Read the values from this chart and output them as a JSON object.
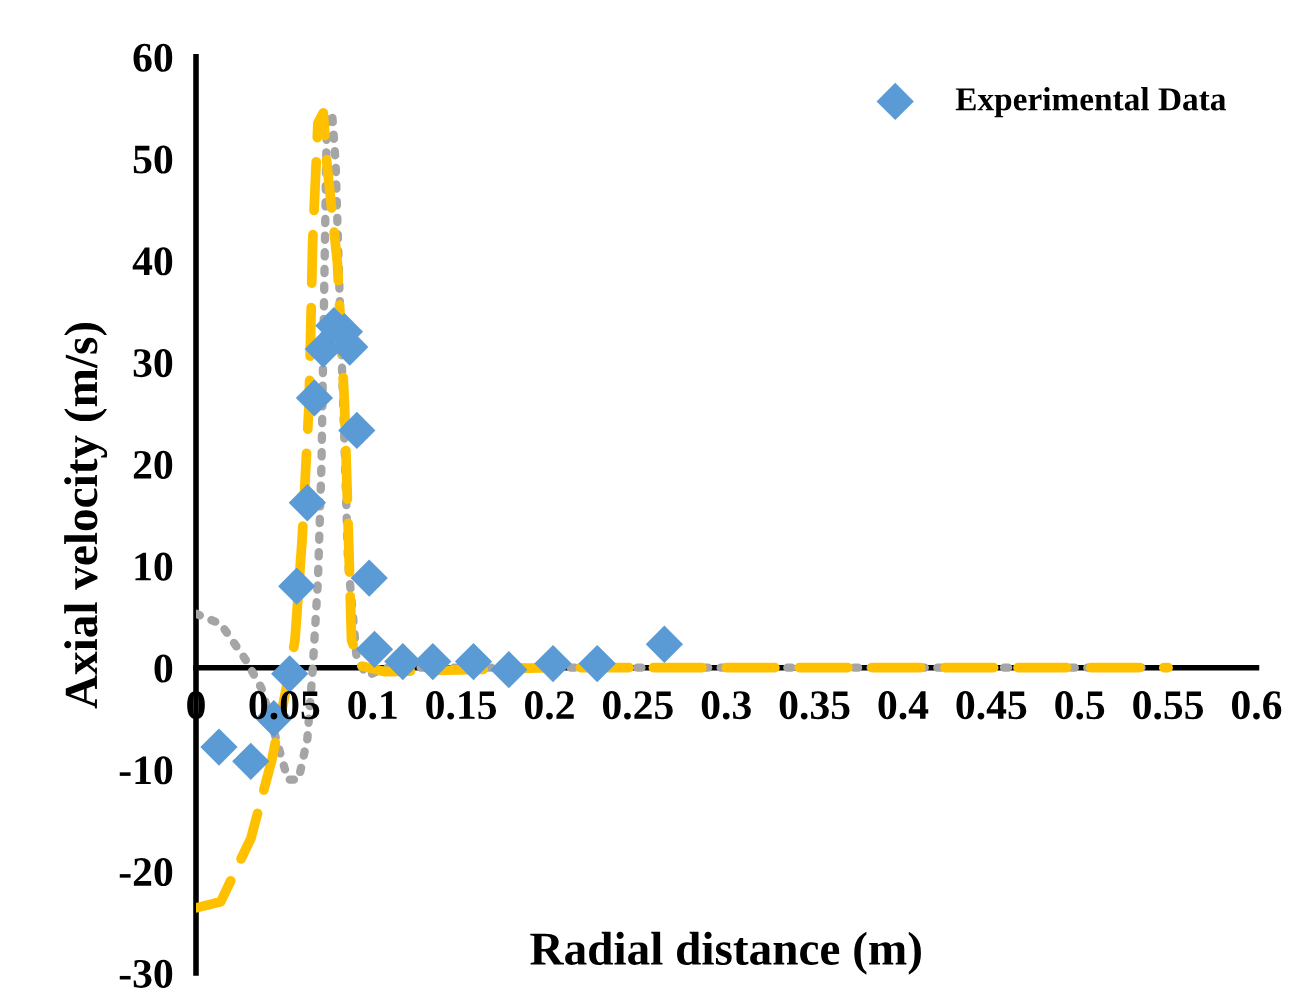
{
  "chart_data": {
    "type": "line",
    "xlabel": "Radial distance (m)",
    "ylabel": "Axial velocity (m/s)",
    "xlim": [
      0,
      0.6
    ],
    "ylim": [
      -30,
      60
    ],
    "xticks": [
      0,
      0.05,
      0.1,
      0.15,
      0.2,
      0.25,
      0.3,
      0.35,
      0.4,
      0.45,
      0.5,
      0.55,
      0.6
    ],
    "yticks": [
      -30,
      -20,
      -10,
      0,
      10,
      20,
      30,
      40,
      50,
      60
    ],
    "grid": false,
    "legend": "top right",
    "series": [
      {
        "name": "Experimental Data",
        "type": "scatter",
        "marker": "diamond",
        "color": "#5b9bd5",
        "x": [
          0.013,
          0.031,
          0.044,
          0.053,
          0.057,
          0.063,
          0.067,
          0.072,
          0.078,
          0.084,
          0.087,
          0.091,
          0.098,
          0.101,
          0.117,
          0.134,
          0.157,
          0.177,
          0.202,
          0.227,
          0.265
        ],
        "values": [
          -7.8,
          -9.2,
          -5,
          -0.6,
          8,
          16.2,
          26.5,
          31.3,
          33.6,
          33,
          31.5,
          23.3,
          8.8,
          1.8,
          0.6,
          0.6,
          0.6,
          -0.2,
          0.4,
          0.4,
          2.3
        ]
      },
      {
        "line_style": "dotted",
        "color": "#a5a5a5",
        "x": [
          0,
          0.014,
          0.028,
          0.037,
          0.047,
          0.052,
          0.058,
          0.063,
          0.066,
          0.069,
          0.071,
          0.074,
          0.077,
          0.079,
          0.081,
          0.084,
          0.086,
          0.091,
          0.097,
          0.107,
          0.2,
          0.3,
          0.4,
          0.54
        ],
        "values": [
          5.3,
          4.3,
          0.8,
          -2,
          -8,
          -11,
          -11,
          -7,
          -0.2,
          8.6,
          20,
          53.5,
          54.5,
          49.6,
          38,
          22,
          10.5,
          0.8,
          -0.8,
          0,
          0,
          0,
          0,
          0
        ]
      },
      {
        "line_style": "dashed",
        "color": "#ffc000",
        "x": [
          0,
          0.014,
          0.023,
          0.031,
          0.043,
          0.051,
          0.056,
          0.06,
          0.064,
          0.066,
          0.069,
          0.072,
          0.074,
          0.08,
          0.084,
          0.086,
          0.088,
          0.093,
          0.107,
          0.2,
          0.3,
          0.4,
          0.55
        ],
        "values": [
          -23.6,
          -23,
          -19.7,
          -16.8,
          -9,
          -2.1,
          2.7,
          12.5,
          26,
          41.8,
          53.5,
          54.5,
          49.6,
          39.8,
          26,
          14.5,
          2.7,
          0.2,
          -0.4,
          0,
          0,
          0,
          0
        ]
      }
    ]
  }
}
